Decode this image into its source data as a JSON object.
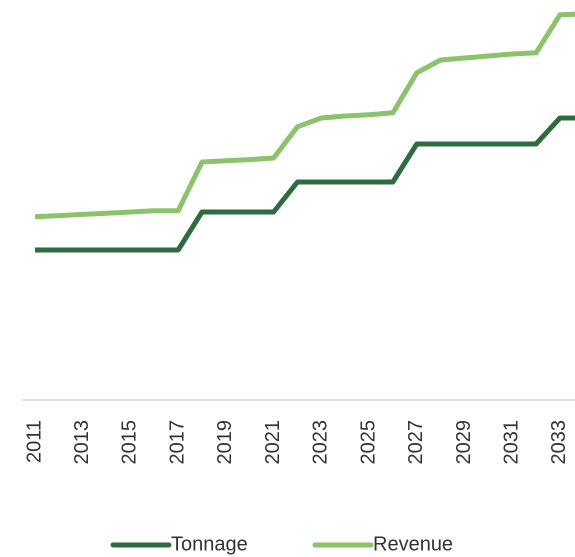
{
  "chart_data": {
    "type": "line",
    "categories": [
      "2011",
      null,
      "2013",
      null,
      "2015",
      null,
      "2017",
      null,
      "2019",
      null,
      "2021",
      null,
      "2023",
      null,
      "2025",
      null,
      "2027",
      null,
      "2029",
      null,
      "2031",
      null,
      "2033",
      null
    ],
    "series": [
      {
        "name": "Tonnage",
        "color": "#2e6b3e",
        "values": [
          37.5,
          37.5,
          37.5,
          37.5,
          37.5,
          37.5,
          37.5,
          47,
          47,
          47,
          47,
          54.5,
          54.5,
          54.5,
          54.5,
          54.5,
          64,
          64,
          64,
          64,
          64,
          64,
          70.5,
          70.5
        ]
      },
      {
        "name": "Revenue",
        "color": "#8cc26a",
        "values": [
          45.8,
          46.1,
          46.4,
          46.7,
          47,
          47.3,
          47.3,
          59.5,
          59.8,
          60.1,
          60.5,
          68.3,
          70.5,
          71,
          71.3,
          71.8,
          81.8,
          85,
          85.5,
          86,
          86.5,
          86.8,
          96.3,
          96.5
        ]
      }
    ],
    "ylim": [
      0,
      100
    ],
    "grid": false,
    "legend": "bottom"
  }
}
